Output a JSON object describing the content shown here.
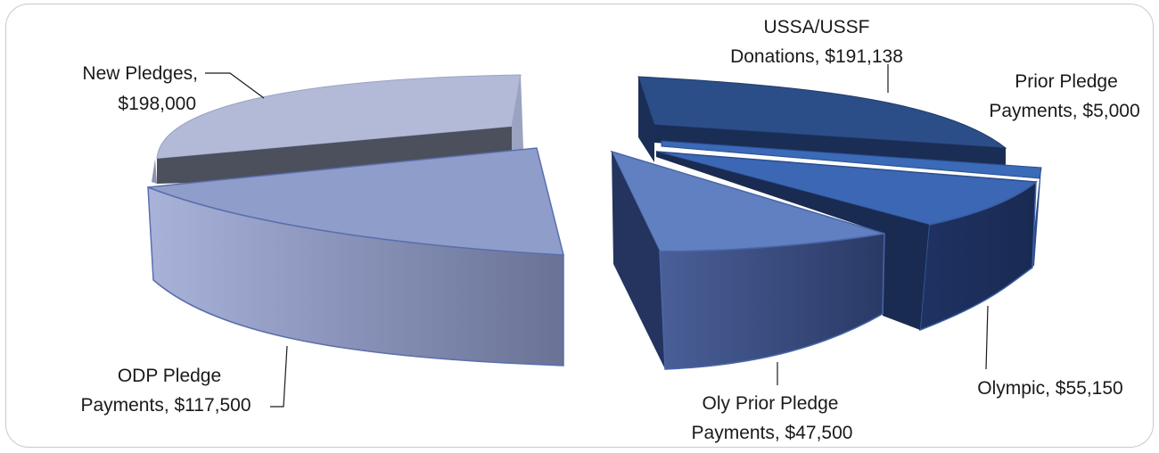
{
  "chart_data": {
    "type": "pie",
    "title": "",
    "exploded": true,
    "style": "3d",
    "slices": [
      {
        "label": "New Pledges",
        "value": 198000,
        "value_text": "$198,000",
        "color": "#b2b9d6"
      },
      {
        "label": "ODP Pledge Payments",
        "value": 117500,
        "value_text": "$117,500",
        "color": "#8e9cca"
      },
      {
        "label": "USSA/USSF Donations",
        "value": 191138,
        "value_text": "$191,138",
        "color": "#2b4d86"
      },
      {
        "label": "Prior Pledge Payments",
        "value": 5000,
        "value_text": "$5,000",
        "color": "#3a6ab8"
      },
      {
        "label": "Olympic",
        "value": 55150,
        "value_text": "$55,150",
        "color": "#3c67b5"
      },
      {
        "label": "Oly Prior Pledge Payments",
        "value": 47500,
        "value_text": "$47,500",
        "color": "#5e7fc0"
      }
    ]
  },
  "labels": {
    "new_pledges_1": "New Pledges,",
    "new_pledges_2": "$198,000",
    "odp_1": "ODP Pledge",
    "odp_2": "Payments, $117,500",
    "ussa_1": "USSA/USSF",
    "ussa_2": "Donations, $191,138",
    "prior_1": "Prior Pledge",
    "prior_2": "Payments, $5,000",
    "olympic_1": "Olympic, $55,150",
    "oly_prior_1": "Oly Prior Pledge",
    "oly_prior_2": "Payments, $47,500"
  }
}
